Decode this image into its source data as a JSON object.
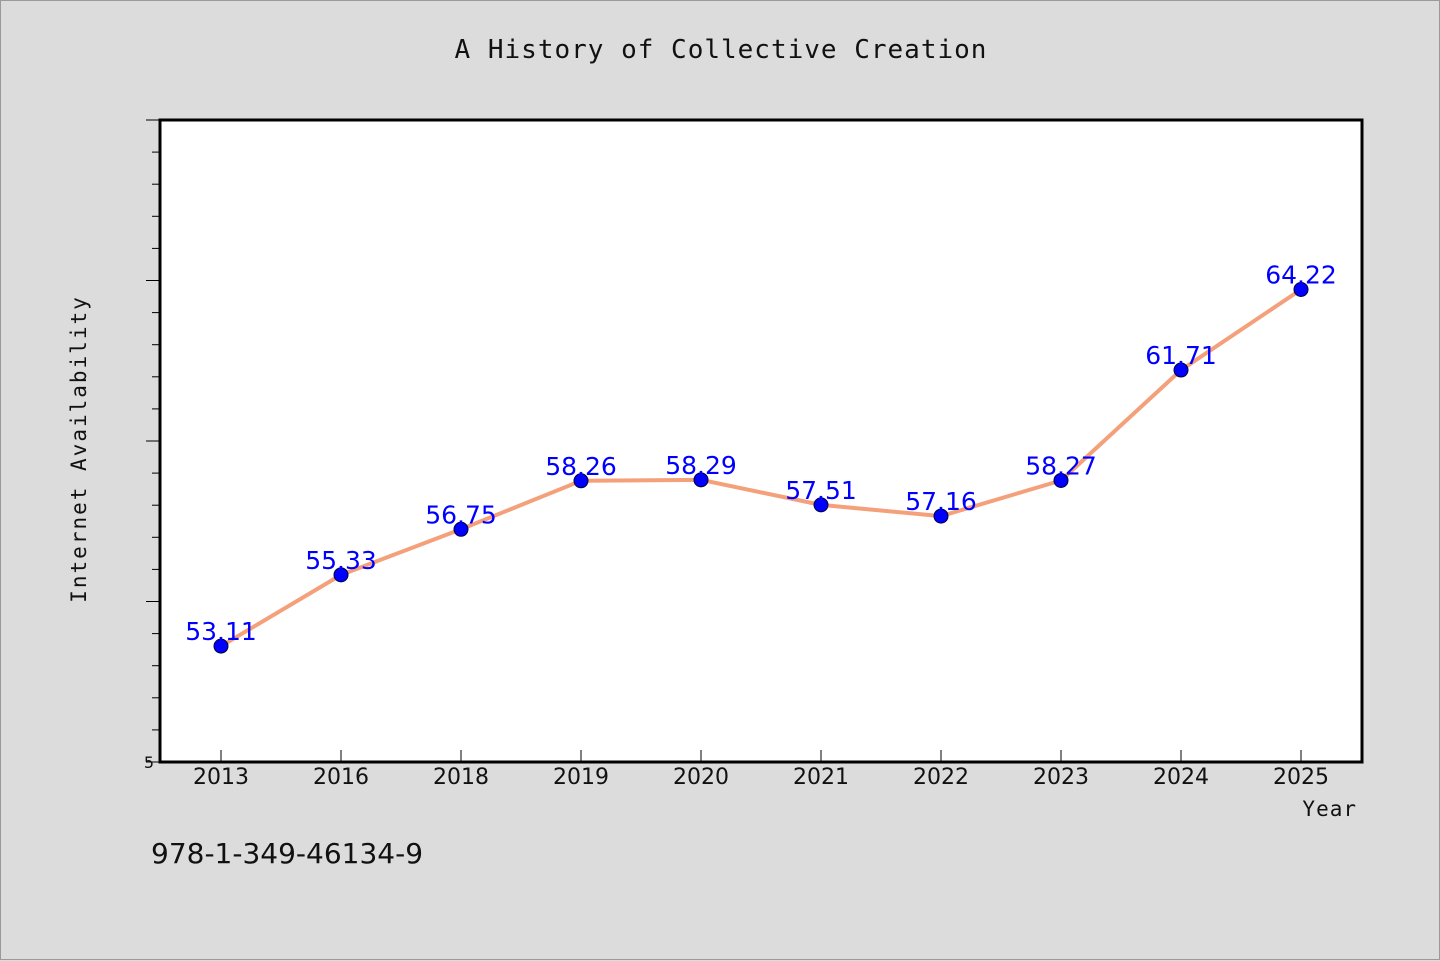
{
  "colors": {
    "background": "#dcdcdc",
    "plot_background": "#ffffff",
    "line": "#f4a07a",
    "marker": "#0000ff",
    "data_label": "#0000ff"
  },
  "chart_data": {
    "type": "line",
    "title": "A History of Collective Creation",
    "xlabel": "Year",
    "ylabel": "Internet Availability",
    "categories": [
      "2013",
      "2016",
      "2018",
      "2019",
      "2020",
      "2021",
      "2022",
      "2023",
      "2024",
      "2025"
    ],
    "series": [
      {
        "values": [
          53.11,
          55.33,
          56.75,
          58.26,
          58.29,
          57.51,
          57.16,
          58.27,
          61.71,
          64.22
        ]
      }
    ],
    "data_labels": [
      "53.11",
      "55.33",
      "56.75",
      "58.26",
      "58.29",
      "57.51",
      "57.16",
      "58.27",
      "61.71",
      "64.22"
    ],
    "ylim": [
      49.5,
      69.5
    ],
    "y_tick_labels": [
      "5"
    ],
    "grid": false,
    "legend": "none"
  },
  "footer": {
    "isbn": "978-1-349-46134-9"
  }
}
